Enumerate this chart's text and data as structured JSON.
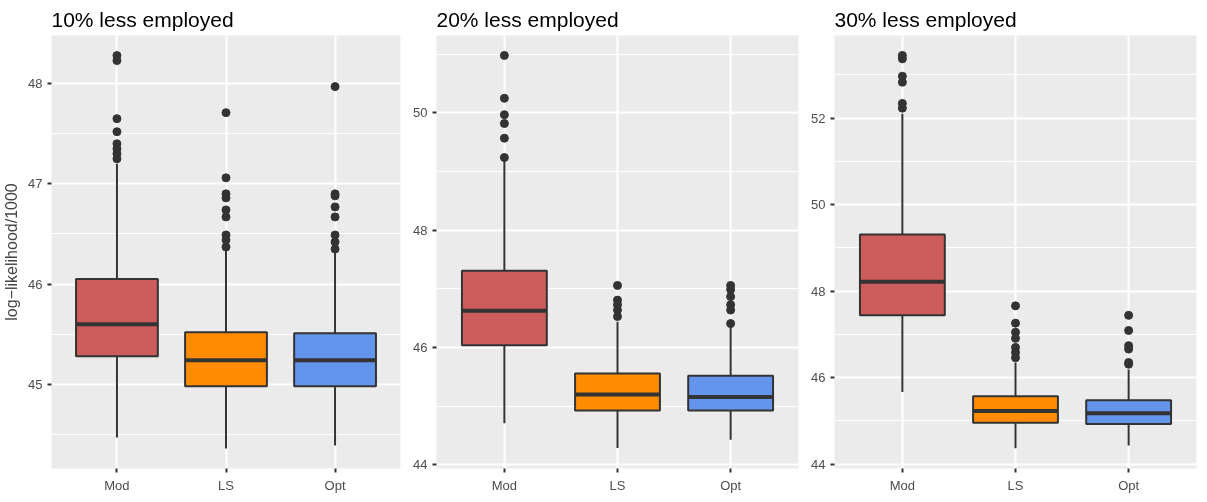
{
  "chart_data": [
    {
      "type": "box",
      "title": "10% less employed",
      "ylabel": "log−likelihood/1000",
      "categories": [
        "Mod",
        "LS",
        "Opt"
      ],
      "colors": [
        "#cd5c5c",
        "#ff8c00",
        "#6495ed"
      ],
      "ylim": [
        44.16,
        48.48
      ],
      "yticks": [
        45,
        46,
        47,
        48
      ],
      "grid": true,
      "boxes": [
        {
          "low": 44.47,
          "q1": 45.28,
          "median": 45.6,
          "q3": 46.05,
          "high": 47.2,
          "outliers": [
            48.28,
            48.23,
            47.65,
            47.52,
            47.4,
            47.35,
            47.3,
            47.25
          ]
        },
        {
          "low": 44.36,
          "q1": 44.98,
          "median": 45.24,
          "q3": 45.52,
          "high": 46.35,
          "outliers": [
            47.71,
            47.06,
            46.9,
            46.86,
            46.74,
            46.67,
            46.49,
            46.44,
            46.37
          ]
        },
        {
          "low": 44.39,
          "q1": 44.98,
          "median": 45.24,
          "q3": 45.51,
          "high": 46.33,
          "outliers": [
            47.97,
            46.9,
            46.88,
            46.77,
            46.67,
            46.49,
            46.42,
            46.35
          ]
        }
      ]
    },
    {
      "type": "box",
      "title": "20% less employed",
      "categories": [
        "Mod",
        "LS",
        "Opt"
      ],
      "colors": [
        "#cd5c5c",
        "#ff8c00",
        "#6495ed"
      ],
      "ylim": [
        43.94,
        51.32
      ],
      "yticks": [
        44,
        46,
        48,
        50
      ],
      "grid": true,
      "boxes": [
        {
          "low": 44.71,
          "q1": 46.04,
          "median": 46.63,
          "q3": 47.31,
          "high": 49.2,
          "outliers": [
            50.98,
            50.25,
            49.97,
            49.82,
            49.57,
            49.24
          ]
        },
        {
          "low": 44.29,
          "q1": 44.93,
          "median": 45.2,
          "q3": 45.56,
          "high": 46.44,
          "outliers": [
            47.06,
            46.81,
            46.73,
            46.64,
            46.53
          ]
        },
        {
          "low": 44.43,
          "q1": 44.93,
          "median": 45.16,
          "q3": 45.52,
          "high": 46.35,
          "outliers": [
            47.06,
            46.99,
            46.87,
            46.73,
            46.64,
            46.41
          ]
        }
      ]
    },
    {
      "type": "box",
      "title": "30% less employed",
      "categories": [
        "Mod",
        "LS",
        "Opt"
      ],
      "colors": [
        "#cd5c5c",
        "#ff8c00",
        "#6495ed"
      ],
      "ylim": [
        43.9,
        53.91
      ],
      "yticks": [
        44,
        46,
        48,
        50,
        52
      ],
      "grid": true,
      "boxes": [
        {
          "low": 45.67,
          "q1": 47.44,
          "median": 48.22,
          "q3": 49.31,
          "high": 52.1,
          "outliers": [
            53.45,
            53.37,
            52.97,
            52.83,
            52.34,
            52.23
          ]
        },
        {
          "low": 44.37,
          "q1": 44.96,
          "median": 45.23,
          "q3": 45.57,
          "high": 46.35,
          "outliers": [
            47.66,
            47.26,
            47.05,
            46.91,
            46.7,
            46.58,
            46.46
          ]
        },
        {
          "low": 44.43,
          "q1": 44.93,
          "median": 45.18,
          "q3": 45.48,
          "high": 46.19,
          "outliers": [
            47.44,
            47.09,
            46.74,
            46.66,
            46.35,
            46.31
          ]
        }
      ]
    }
  ]
}
